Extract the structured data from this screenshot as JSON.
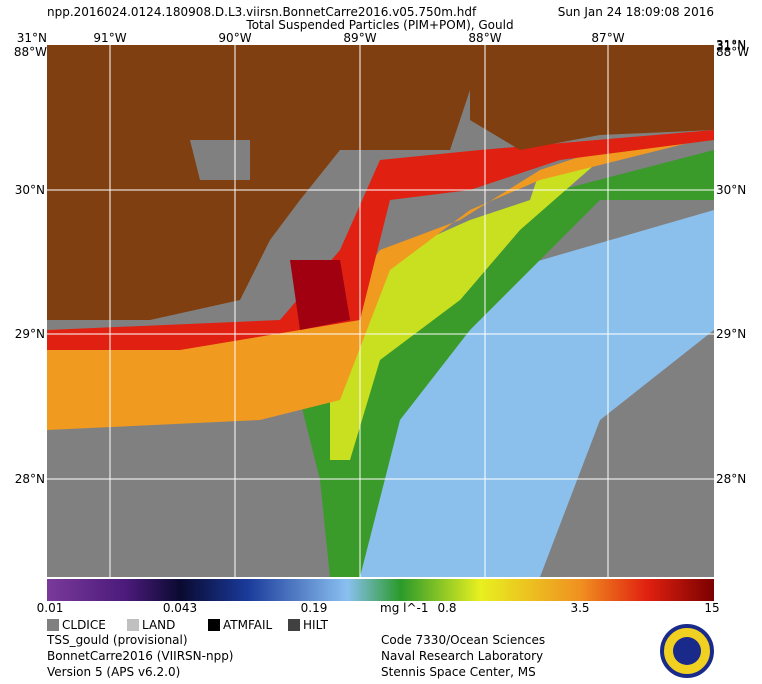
{
  "header": {
    "filename": "npp.2016024.0124.180908.D.L3.viirsn.BonnetCarre2016.v05.750m.hdf",
    "datetime": "Sun Jan 24 18:09:08 2016",
    "product": "Total Suspended Particles (PIM+POM), Gould"
  },
  "map": {
    "lon_labels": [
      "91°W",
      "90°W",
      "89°W",
      "88°W",
      "87°W"
    ],
    "lat_labels": [
      "31°N",
      "30°N",
      "29°N",
      "28°N"
    ],
    "corner_labels": [
      "31°N",
      "88°W",
      "31°N",
      "88°W"
    ]
  },
  "colorbar": {
    "tick_labels": [
      "0.01",
      "0.043",
      "0.19",
      "0.8",
      "3.5",
      "15"
    ],
    "units": "mg l^-1"
  },
  "legend": {
    "items": [
      "CLDICE",
      "LAND",
      "ATMFAIL",
      "HILT"
    ]
  },
  "footer": {
    "left": [
      "TSS_gould (provisional)",
      "BonnetCarre2016 (VIIRSN-npp)",
      "Version 5 (APS v6.2.0)"
    ],
    "right": [
      "Code 7330/Ocean Sciences",
      "Naval Research Laboratory",
      "Stennis Space Center, MS"
    ]
  }
}
